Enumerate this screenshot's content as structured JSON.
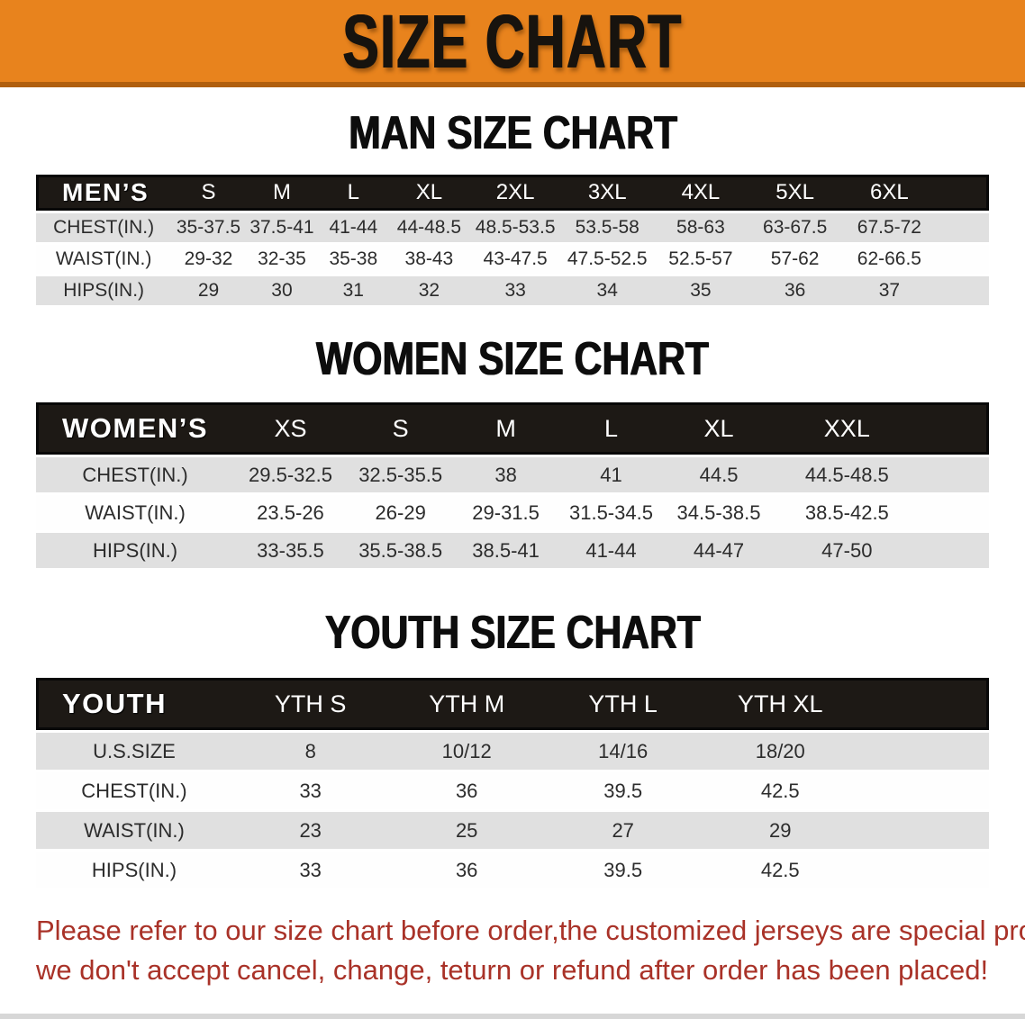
{
  "banner": {
    "title": "SIZE CHART",
    "background": "#E8831D",
    "edge_color": "#B05F0E"
  },
  "sections": [
    {
      "heading": "MAN SIZE CHART",
      "corner": "MEN’S",
      "columns": [
        "S",
        "M",
        "L",
        "XL",
        "2XL",
        "3XL",
        "4XL",
        "5XL",
        "6XL"
      ],
      "rows": [
        {
          "label": "CHEST(IN.)",
          "values": [
            "35-37.5",
            "37.5-41",
            "41-44",
            "44-48.5",
            "48.5-53.5",
            "53.5-58",
            "58-63",
            "63-67.5",
            "67.5-72"
          ]
        },
        {
          "label": "WAIST(IN.)",
          "values": [
            "29-32",
            "32-35",
            "35-38",
            "38-43",
            "43-47.5",
            "47.5-52.5",
            "52.5-57",
            "57-62",
            "62-66.5"
          ]
        },
        {
          "label": "HIPS(IN.)",
          "values": [
            "29",
            "30",
            "31",
            "32",
            "33",
            "34",
            "35",
            "36",
            "37"
          ]
        }
      ]
    },
    {
      "heading": "WOMEN SIZE CHART",
      "corner": "WOMEN’S",
      "columns": [
        "XS",
        "S",
        "M",
        "L",
        "XL",
        "XXL"
      ],
      "rows": [
        {
          "label": "CHEST(IN.)",
          "values": [
            "29.5-32.5",
            "32.5-35.5",
            "38",
            "41",
            "44.5",
            "44.5-48.5"
          ]
        },
        {
          "label": "WAIST(IN.)",
          "values": [
            "23.5-26",
            "26-29",
            "29-31.5",
            "31.5-34.5",
            "34.5-38.5",
            "38.5-42.5"
          ]
        },
        {
          "label": "HIPS(IN.)",
          "values": [
            "33-35.5",
            "35.5-38.5",
            "38.5-41",
            "41-44",
            "44-47",
            "47-50"
          ]
        }
      ]
    },
    {
      "heading": "YOUTH SIZE CHART",
      "corner": "YOUTH",
      "columns": [
        "YTH S",
        "YTH M",
        "YTH L",
        "YTH XL"
      ],
      "rows": [
        {
          "label": "U.S.SIZE",
          "values": [
            "8",
            "10/12",
            "14/16",
            "18/20"
          ]
        },
        {
          "label": "CHEST(IN.)",
          "values": [
            "33",
            "36",
            "39.5",
            "42.5"
          ]
        },
        {
          "label": "WAIST(IN.)",
          "values": [
            "23",
            "25",
            "27",
            "29"
          ]
        },
        {
          "label": "HIPS(IN.)",
          "values": [
            "33",
            "36",
            "39.5",
            "42.5"
          ]
        }
      ]
    }
  ],
  "disclaimer": {
    "line1": "Please refer to our size chart before order,the customized jerseys are special products,",
    "line2": "we don't accept cancel, change, teturn or refund after order has been placed!",
    "color": "#A93228"
  }
}
